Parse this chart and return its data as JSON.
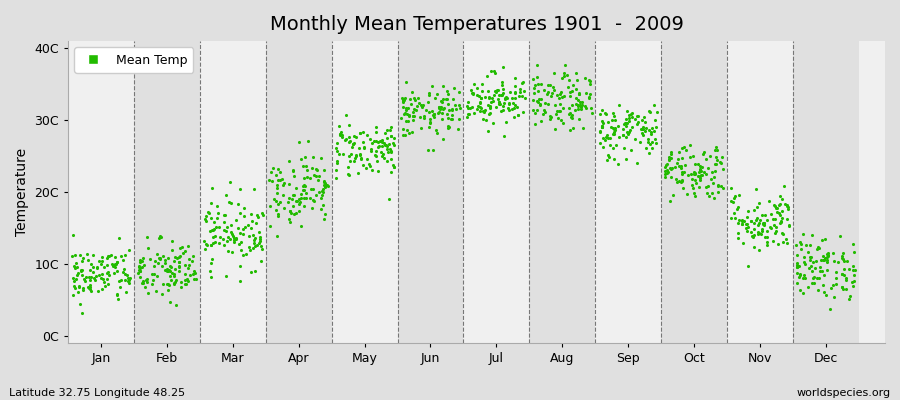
{
  "title": "Monthly Mean Temperatures 1901  -  2009",
  "ylabel": "Temperature",
  "subtitle": "Latitude 32.75 Longitude 48.25",
  "watermark": "worldspecies.org",
  "legend_label": "Mean Temp",
  "dot_color": "#22bb00",
  "bg_color": "#e0e0e0",
  "band_light": "#f0f0f0",
  "band_dark": "#e0e0e0",
  "yticks": [
    0,
    10,
    20,
    30,
    40
  ],
  "ytick_labels": [
    "0C",
    "10C",
    "20C",
    "30C",
    "40C"
  ],
  "months": [
    "Jan",
    "Feb",
    "Mar",
    "Apr",
    "May",
    "Jun",
    "Jul",
    "Aug",
    "Sep",
    "Oct",
    "Nov",
    "Dec"
  ],
  "month_means": [
    8.5,
    9.0,
    14.5,
    20.5,
    26.0,
    31.0,
    33.0,
    32.5,
    28.5,
    23.0,
    16.0,
    9.5
  ],
  "month_stds": [
    2.0,
    2.2,
    2.5,
    2.5,
    2.0,
    1.8,
    1.8,
    2.0,
    2.0,
    2.0,
    2.2,
    2.2
  ],
  "n_points": 109,
  "seed": 42,
  "ylim": [
    -1,
    41
  ],
  "xlim": [
    0,
    12.4
  ],
  "dot_size": 5
}
